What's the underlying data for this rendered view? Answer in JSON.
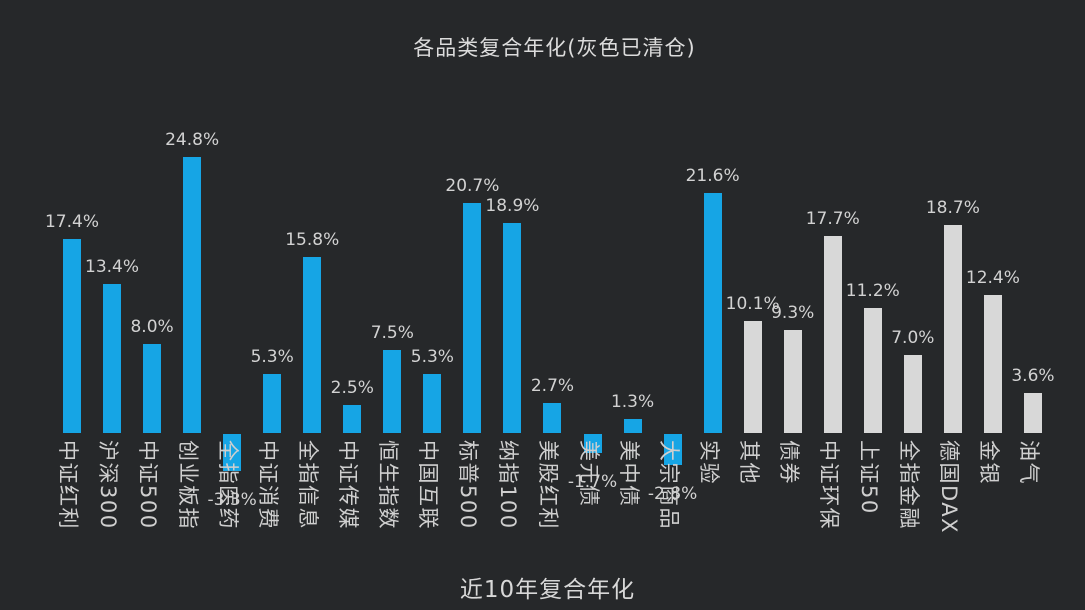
{
  "page": {
    "background": "#26282a"
  },
  "header": {
    "title": "各品类复合年化(灰色已清仓)"
  },
  "footer": {
    "x_axis_title": "近10年复合年化"
  },
  "chart_data": {
    "type": "bar",
    "title": "各品类复合年化(灰色已清仓)",
    "xlabel": "近10年复合年化",
    "ylabel": "",
    "unit": "%",
    "grid": false,
    "legend_note": "灰色已清仓",
    "colors": {
      "active": "#16a5e5",
      "cleared": "#d8d8d8",
      "background": "#26282a",
      "text": "#d2d2d2"
    },
    "bars": [
      {
        "label": "中证红利",
        "value": 17.4,
        "display": "17.4%",
        "status": "active"
      },
      {
        "label": "沪深300",
        "value": 13.4,
        "display": "13.4%",
        "status": "active"
      },
      {
        "label": "中证500",
        "value": 8.0,
        "display": "8.0%",
        "status": "active"
      },
      {
        "label": "创业板指",
        "value": 24.8,
        "display": "24.8%",
        "status": "active"
      },
      {
        "label": "全指医药",
        "value": -3.3,
        "display": "-3.3%",
        "status": "active"
      },
      {
        "label": "中证消费",
        "value": 5.3,
        "display": "5.3%",
        "status": "active"
      },
      {
        "label": "全指信息",
        "value": 15.8,
        "display": "15.8%",
        "status": "active"
      },
      {
        "label": "中证传媒",
        "value": 2.5,
        "display": "2.5%",
        "status": "active"
      },
      {
        "label": "恒生指数",
        "value": 7.5,
        "display": "7.5%",
        "status": "active"
      },
      {
        "label": "中国互联",
        "value": 5.3,
        "display": "5.3%",
        "status": "active"
      },
      {
        "label": "标普500",
        "value": 20.7,
        "display": "20.7%",
        "status": "active"
      },
      {
        "label": "纳指100",
        "value": 18.9,
        "display": "18.9%",
        "status": "active"
      },
      {
        "label": "美股红利",
        "value": 2.7,
        "display": "2.7%",
        "status": "active"
      },
      {
        "label": "美元债",
        "value": -1.7,
        "display": "-1.7%",
        "status": "active"
      },
      {
        "label": "美中债",
        "value": 1.3,
        "display": "1.3%",
        "status": "active"
      },
      {
        "label": "大宗商品",
        "value": -2.8,
        "display": "-2.8%",
        "status": "active"
      },
      {
        "label": "实验",
        "value": 21.6,
        "display": "21.6%",
        "status": "active"
      },
      {
        "label": "其他",
        "value": 10.1,
        "display": "10.1%",
        "status": "cleared"
      },
      {
        "label": "债券",
        "value": 9.3,
        "display": "9.3%",
        "status": "cleared"
      },
      {
        "label": "中证环保",
        "value": 17.7,
        "display": "17.7%",
        "status": "cleared"
      },
      {
        "label": "上证50",
        "value": 11.2,
        "display": "11.2%",
        "status": "cleared"
      },
      {
        "label": "全指金融",
        "value": 7.0,
        "display": "7.0%",
        "status": "cleared"
      },
      {
        "label": "德国DAX",
        "value": 18.7,
        "display": "18.7%",
        "status": "cleared"
      },
      {
        "label": "金银",
        "value": 12.4,
        "display": "12.4%",
        "status": "cleared"
      },
      {
        "label": "油气",
        "value": 3.6,
        "display": "3.6%",
        "status": "cleared"
      }
    ]
  }
}
